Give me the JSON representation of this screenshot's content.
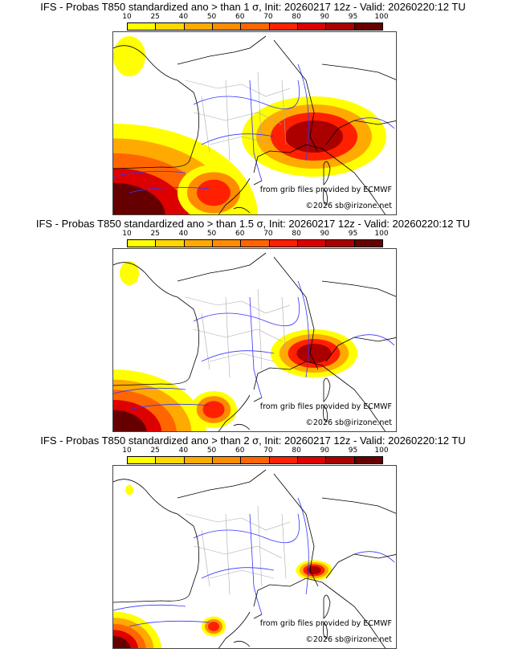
{
  "colorbar": {
    "ticks": [
      "10",
      "25",
      "40",
      "50",
      "60",
      "70",
      "80",
      "90",
      "95",
      "100"
    ],
    "colors": [
      "#ffff00",
      "#ffd700",
      "#ffaa00",
      "#ff8c00",
      "#ff6600",
      "#ff2000",
      "#dd0000",
      "#aa0000",
      "#660000"
    ]
  },
  "panels": [
    {
      "title": "IFS - Probas T850  standardized ano > than 1 σ, Init: 20260217 12z - Valid: 20260220:12 TU",
      "source": "from grib files provided by ECMWF",
      "copyright": "©2026 sb@irizone.net",
      "intensity": 1.0
    },
    {
      "title": "IFS - Probas T850  standardized ano > than 1.5 σ, Init: 20260217 12z - Valid: 20260220:12 TU",
      "source": "from grib files provided by ECMWF",
      "copyright": "©2026 sb@irizone.net",
      "intensity": 0.6
    },
    {
      "title": "IFS - Probas T850  standardized ano > than 2 σ, Init: 20260217 12z - Valid: 20260220:12 TU",
      "source": "from grib files provided by ECMWF",
      "copyright": "©2026 sb@irizone.net",
      "intensity": 0.25
    }
  ]
}
